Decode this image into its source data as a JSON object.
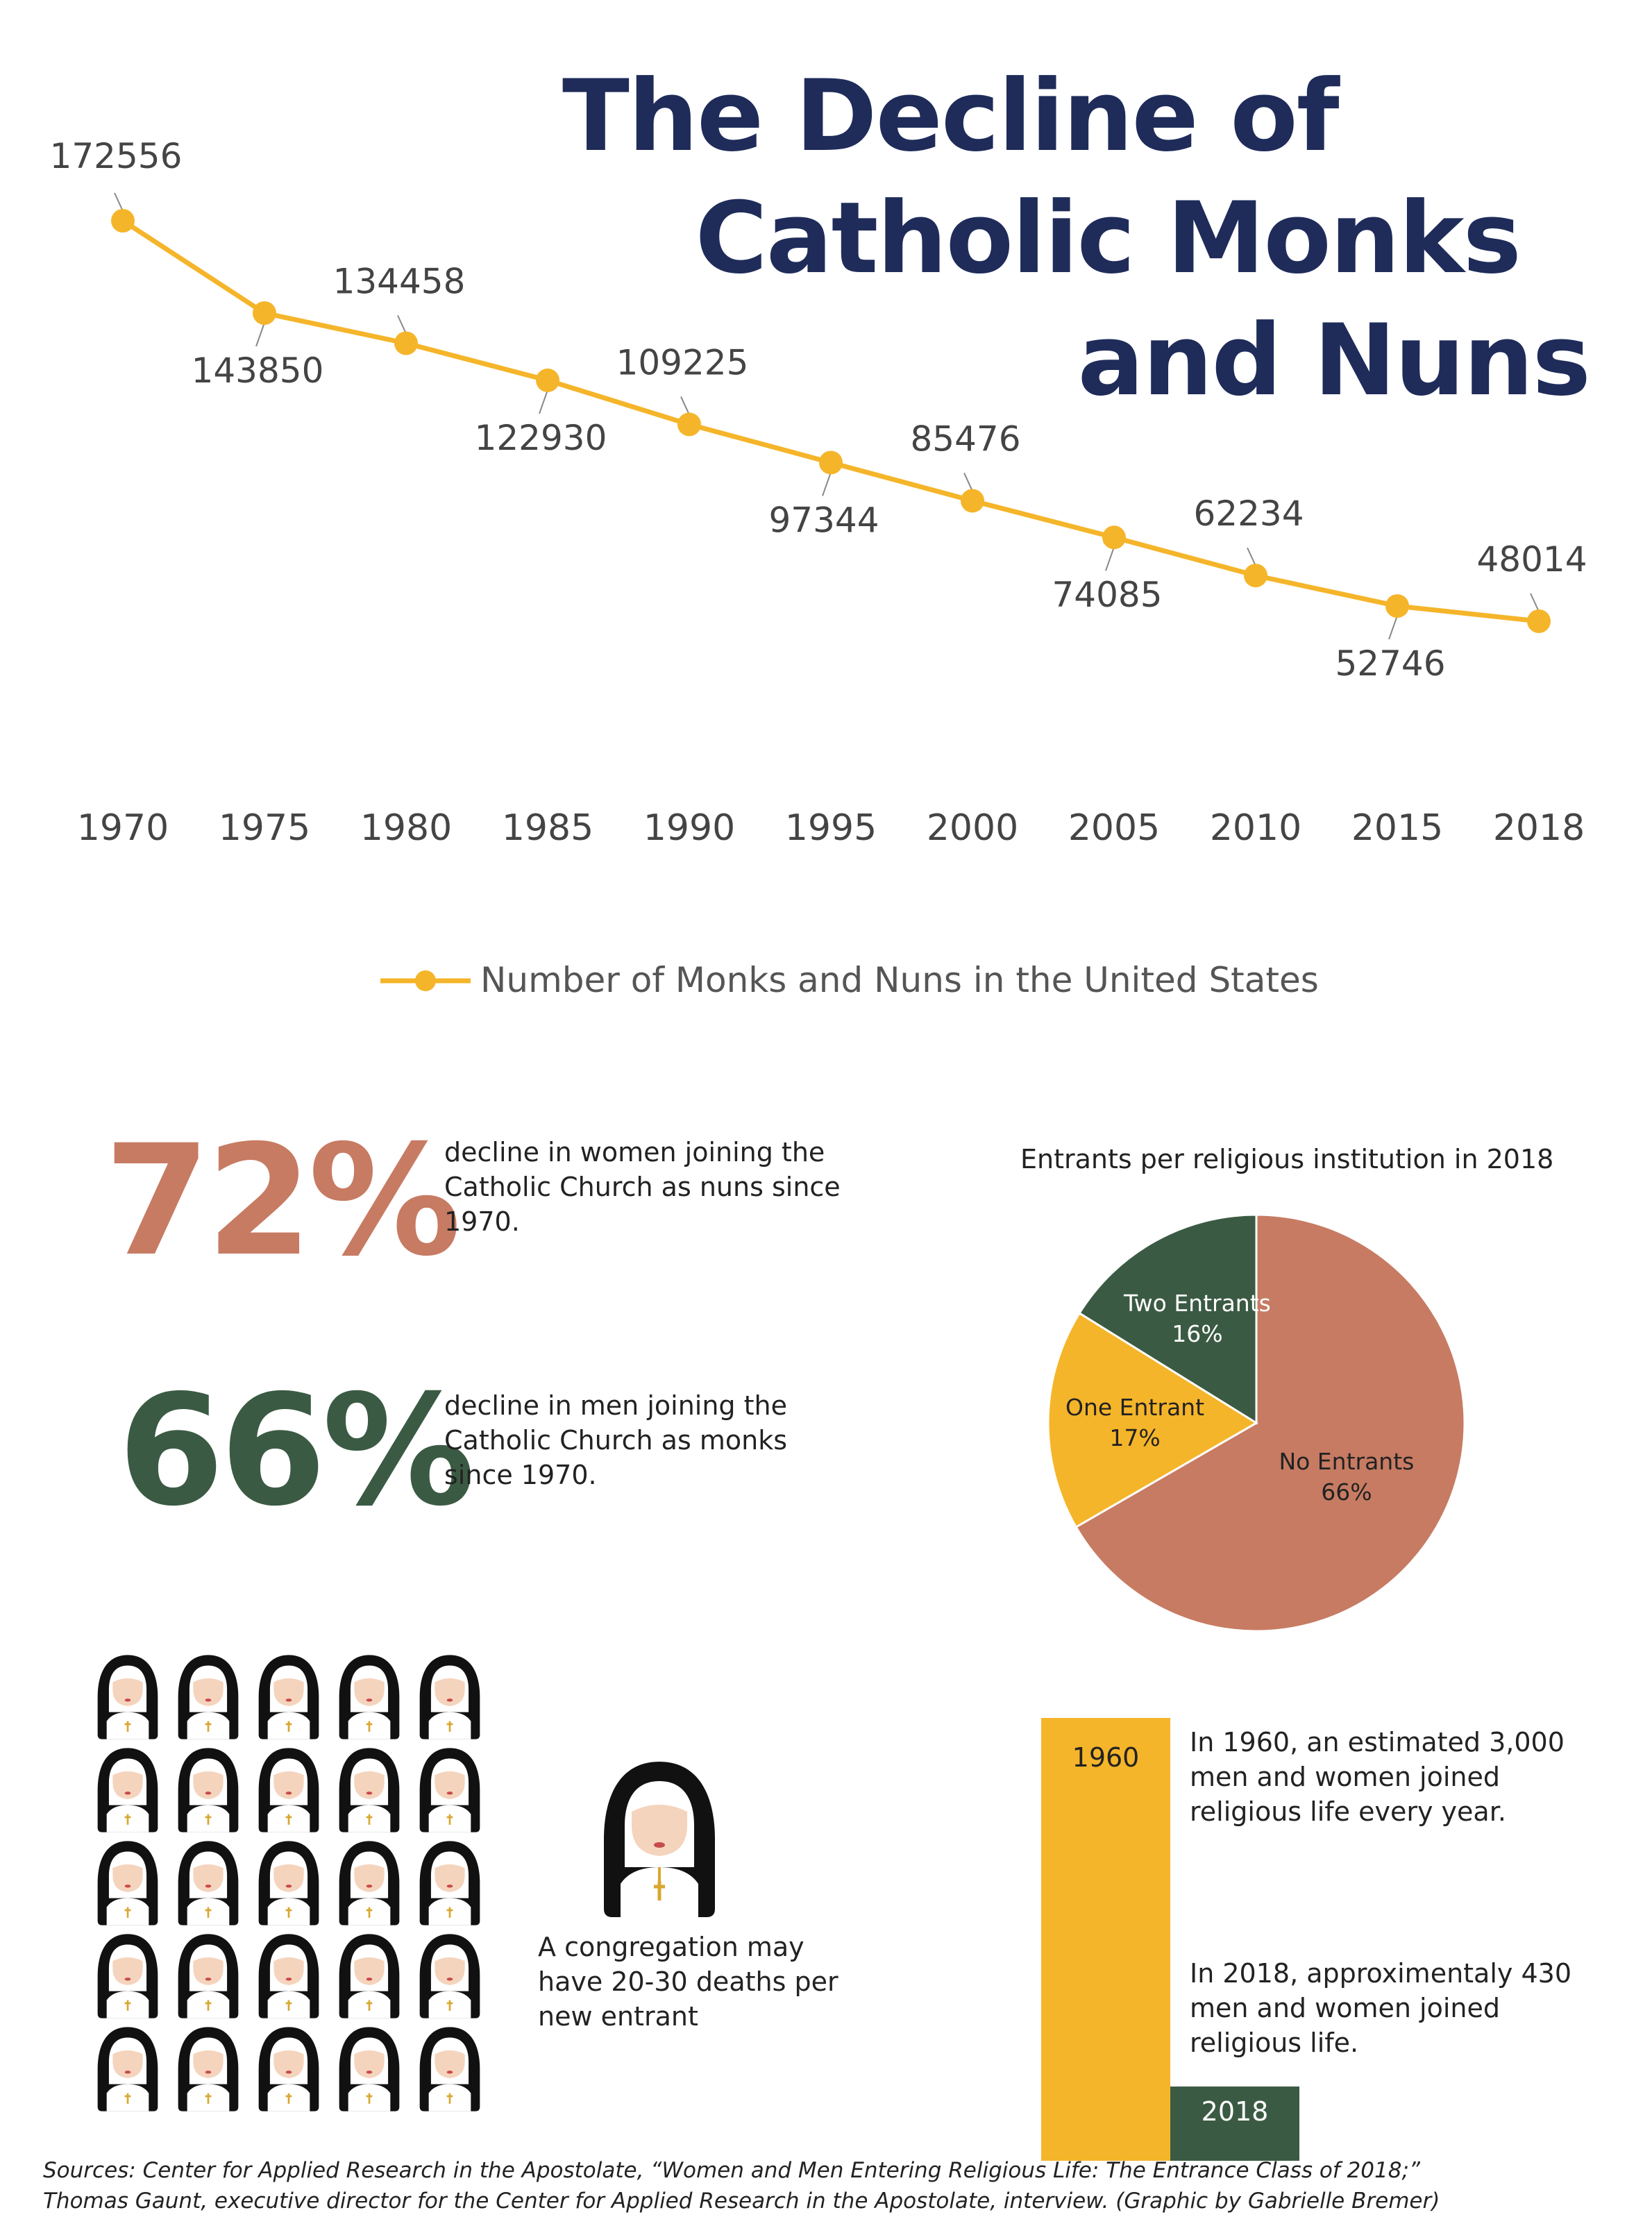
{
  "title": {
    "line1": "The Decline of",
    "line2": "Catholic Monks",
    "line3": "and Nuns"
  },
  "chart_data": [
    {
      "type": "line",
      "categories": [
        "1970",
        "1975",
        "1980",
        "1985",
        "1990",
        "1995",
        "2000",
        "2005",
        "2010",
        "2015",
        "2018"
      ],
      "series": [
        {
          "name": "Number of Monks and Nuns in the United States",
          "values": [
            172556,
            143850,
            134458,
            122930,
            109225,
            97344,
            85476,
            74085,
            62234,
            52746,
            48014
          ],
          "labels": [
            "172556",
            "143850",
            "134458",
            "122930",
            "109225",
            "97344",
            "85476",
            "74085",
            "62234",
            "52746",
            "48014"
          ],
          "color": "#f5b52a"
        }
      ],
      "grid": false,
      "legend_position": "bottom"
    },
    {
      "type": "pie",
      "title": "Entrants per religious institution in 2018",
      "slices": [
        {
          "label": "No Entrants",
          "value": 66,
          "value_label": "66%",
          "color": "#c77b63"
        },
        {
          "label": "One Entrant",
          "value": 17,
          "value_label": "17%",
          "color": "#f5b52a"
        },
        {
          "label": "Two Entrants",
          "value": 16,
          "value_label": "16%",
          "color": "#3b5a43"
        }
      ]
    },
    {
      "type": "bar",
      "categories": [
        "1960",
        "2018"
      ],
      "values": [
        3000,
        430
      ],
      "colors": [
        "#f5b52a",
        "#3b5a43"
      ]
    }
  ],
  "stats": {
    "women": {
      "pct": "72%",
      "text": "decline in women joining the Catholic Church as nuns since 1970.",
      "color": "#c77b63"
    },
    "men": {
      "pct": "66%",
      "text": "decline in men joining the Catholic Church as monks since 1970.",
      "color": "#3b5a43"
    }
  },
  "congregation": {
    "caption": "A congregation may have 20-30 deaths per new entrant",
    "icons": {
      "name": "nun-icon",
      "count": 25
    }
  },
  "entrants_notes": {
    "note_1960": "In 1960, an estimated 3,000 men and women joined religious life every year.",
    "note_2018": "In 2018, approximentaly 430 men and women joined religious life."
  },
  "sources": {
    "line1": "Sources: Center for Applied Research in the Apostolate, “Women and Men Entering Religious Life: The Entrance Class of 2018;”",
    "line2": "Thomas Gaunt, executive director for the Center for Applied Research in the Apostolate, interview. (Graphic by Gabrielle Bremer)"
  }
}
